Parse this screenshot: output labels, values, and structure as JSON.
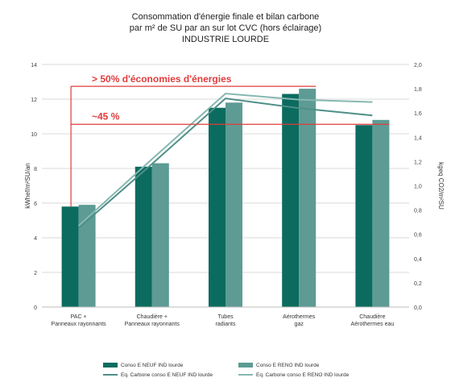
{
  "chart_data": {
    "type": "bar",
    "title_lines": [
      "Consommation d'énergie finale et bilan carbone",
      "par m² de SU par an sur lot CVC (hors éclairage)",
      "INDUSTRIE LOURDE"
    ],
    "ylabel": "kWhef/m²SU/an",
    "y2label": "kgeq CO2/m²SU",
    "ylim": [
      0,
      14
    ],
    "y2lim": [
      0,
      2.0
    ],
    "yticks": [
      "0",
      "2",
      "4",
      "6",
      "8",
      "10",
      "12",
      "14"
    ],
    "y2ticks": [
      "0,0",
      "0,2",
      "0,4",
      "0,6",
      "0,8",
      "1,0",
      "1,2",
      "1,4",
      "1,6",
      "1,8",
      "2,0"
    ],
    "grid": true,
    "categories": [
      [
        "PAC +",
        "Panneaux rayonnants"
      ],
      [
        "Chaudière +",
        "Panneaux rayonnants"
      ],
      [
        "Tubes",
        "radiants"
      ],
      [
        "Aérothermes",
        "gaz"
      ],
      [
        "Chaudière",
        "Aérothermes eau"
      ]
    ],
    "series": [
      {
        "name": "Conso E NEUF IND lourde",
        "kind": "bar",
        "axis": "left",
        "color": "#0b6b5f",
        "values": [
          5.8,
          8.1,
          11.5,
          12.3,
          10.5
        ]
      },
      {
        "name": "Conso E RENO IND lourde",
        "kind": "bar",
        "axis": "left",
        "color": "#5d9b94",
        "values": [
          5.9,
          8.3,
          11.8,
          12.6,
          10.8
        ]
      },
      {
        "name": "Eq. Carbone conso E NEUF IND lourde",
        "kind": "line",
        "axis": "right",
        "color": "#4f8f88",
        "values": [
          0.65,
          1.18,
          1.72,
          1.64,
          1.58
        ]
      },
      {
        "name": "Eq. Carbone conso E RENO IND lourde",
        "kind": "line",
        "axis": "right",
        "color": "#86b8b1",
        "values": [
          0.67,
          1.22,
          1.76,
          1.71,
          1.69
        ]
      }
    ],
    "annotations": [
      {
        "text": "> 50% d'économies d'énergies",
        "from_value": 5.8,
        "to_value": 12.6,
        "color": "#e23b3b"
      },
      {
        "text": "~45 %",
        "from_value": 5.8,
        "to_value": 10.5,
        "color": "#e23b3b"
      }
    ],
    "legend_position": "bottom"
  }
}
